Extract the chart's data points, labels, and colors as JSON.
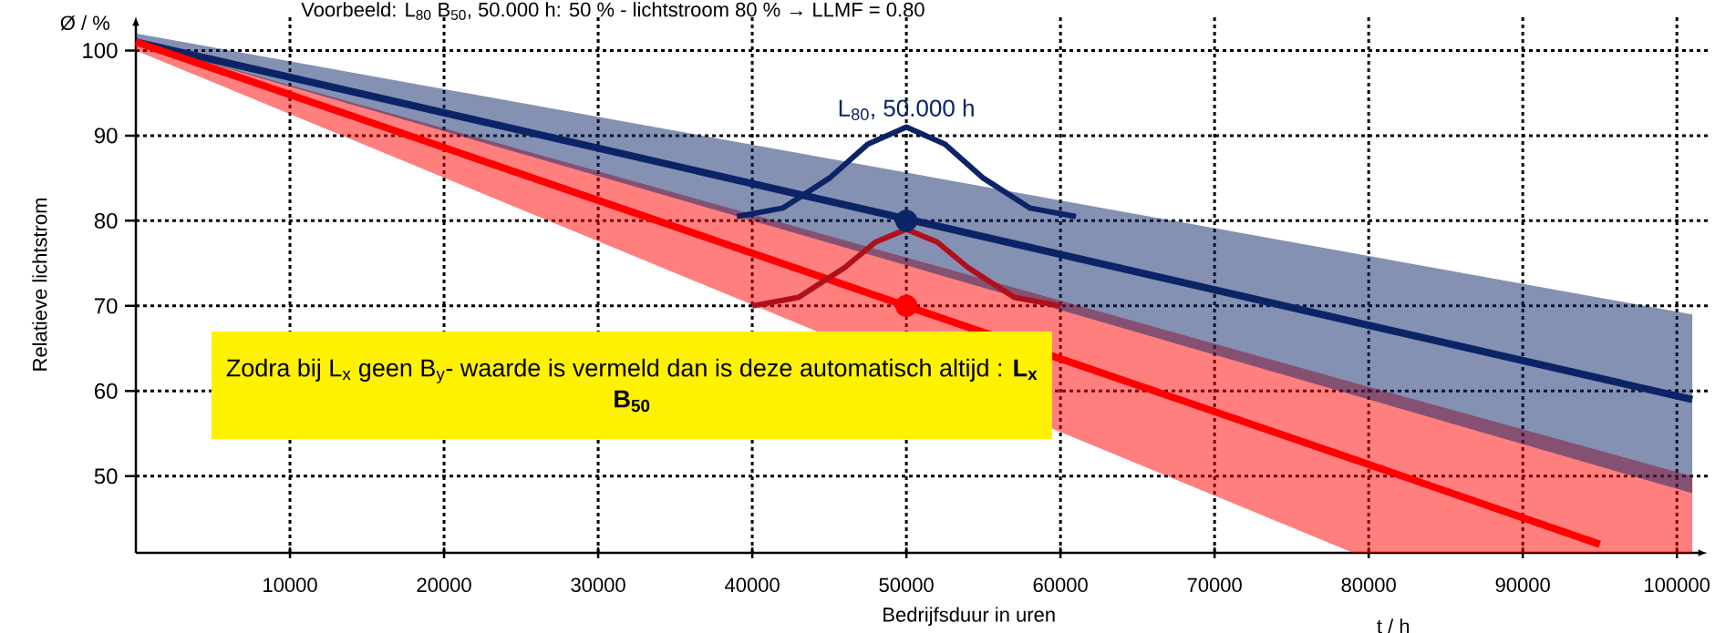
{
  "chart_data": {
    "type": "line",
    "title": "Voorbeeld: L$_{80}$ B$_{50}$, 50.000 h: 50 % - lichtstroom 80 % → LLMF = 0.80",
    "xlabel": "Bedrijfsduur in uren",
    "ylabel": "Relatieve lichtstrom",
    "xlim": [
      0,
      102000
    ],
    "ylim": [
      41,
      104
    ],
    "xticks": [
      10000,
      20000,
      30000,
      40000,
      50000,
      60000,
      70000,
      80000,
      90000,
      100000
    ],
    "yticks": [
      50,
      60,
      70,
      80,
      90,
      100
    ],
    "grid": true,
    "marker": "none",
    "annotations": [
      {
        "text": "L$_{80}$, 50.000 h",
        "x": 50000,
        "y": 91
      },
      "Zodra bij L$_{x}$ geen B$_{y}$- waarde is vermeld dan is deze automatisch altijd :  **L$_{x}$ B$_{50}$**",
      "Ø / %",
      "t / h"
    ],
    "series": [
      {
        "color": "#0b2466",
        "x": [
          0,
          101000
        ],
        "values": [
          101,
          59
        ],
        "lower": [
          101,
          48
        ],
        "upper": [
          102,
          69
        ]
      },
      {
        "color": "#ff0000",
        "x": [
          0,
          79000,
          95000,
          101000
        ],
        "values": [
          101,
          52,
          42,
          null
        ],
        "lower": [
          100,
          41,
          41,
          41
        ],
        "upper": [
          101,
          61,
          53,
          50
        ]
      },
      {
        "color": "#0b2466",
        "x": [
          39000,
          42000,
          45000,
          47500,
          50000,
          52500,
          55000,
          58000,
          61000
        ],
        "values": [
          80.5,
          81.5,
          85,
          89,
          91,
          89,
          85,
          81.5,
          80.5
        ]
      },
      {
        "color": "#b0101a",
        "x": [
          40000,
          43000,
          46000,
          48000,
          50000,
          52000,
          54000,
          57000,
          60000
        ],
        "values": [
          70,
          71,
          74.5,
          77.5,
          79,
          77.5,
          74.5,
          71,
          70
        ]
      },
      {
        "type": "scatter",
        "color": "#0b2466",
        "marker": "circle",
        "x": [
          50000
        ],
        "values": [
          80
        ]
      },
      {
        "type": "scatter",
        "color": "#ff0000",
        "marker": "circle",
        "x": [
          50000
        ],
        "values": [
          70
        ]
      }
    ]
  }
}
